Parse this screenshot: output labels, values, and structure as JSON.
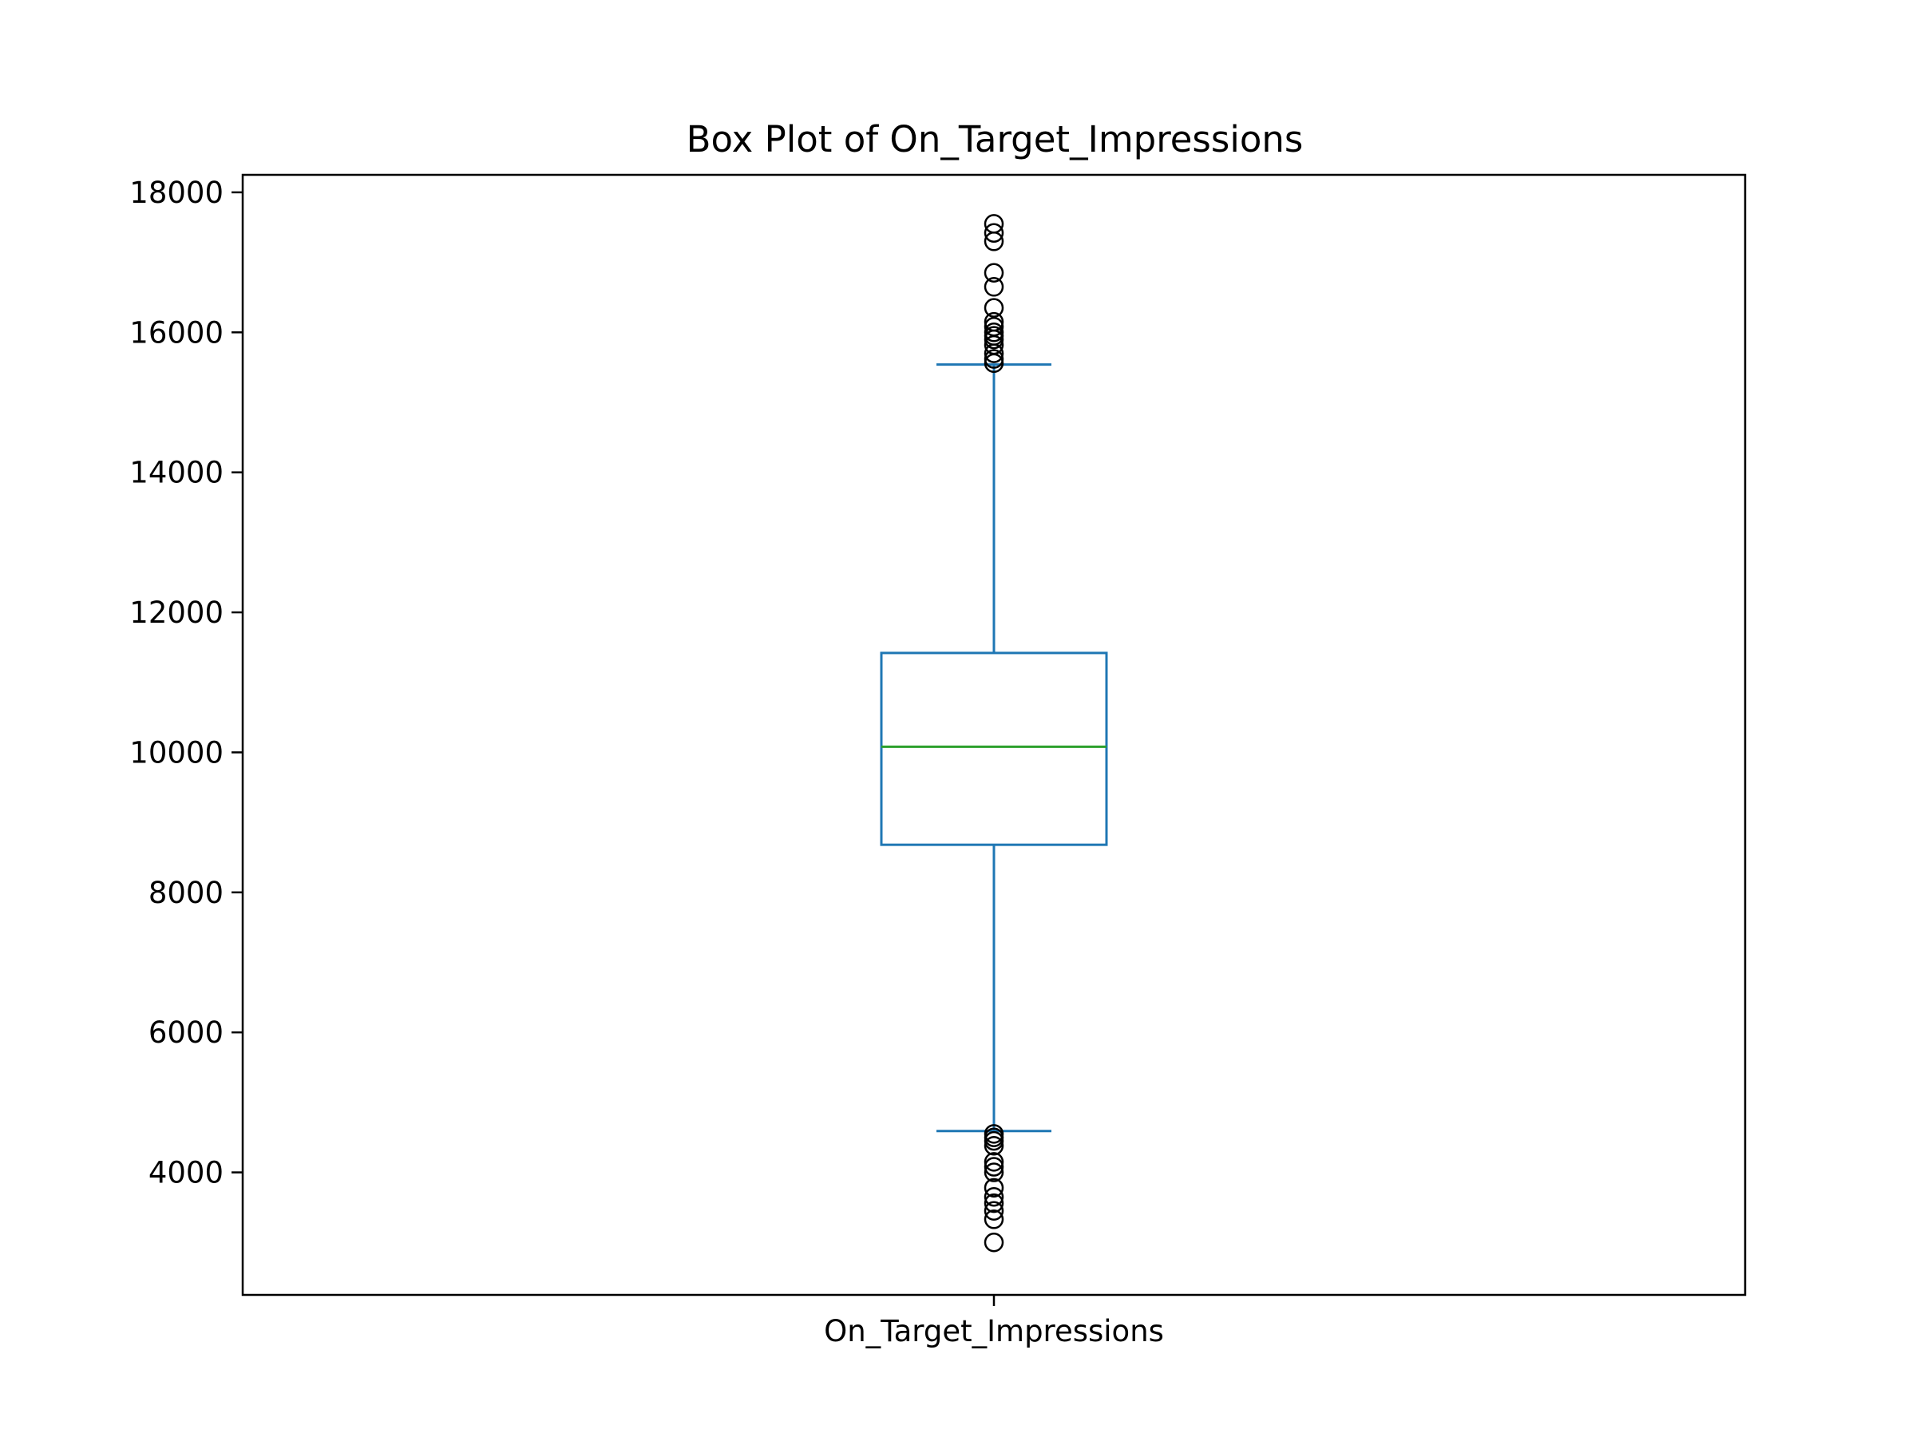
{
  "chart_data": {
    "type": "box",
    "title": "Box Plot of On_Target_Impressions",
    "xlabel": "",
    "ylabel": "",
    "categories": [
      "On_Target_Impressions"
    ],
    "ylim": [
      2250,
      18250
    ],
    "yticks": [
      4000,
      6000,
      8000,
      10000,
      12000,
      14000,
      16000,
      18000
    ],
    "grid": false,
    "box": {
      "whisker_low": 4590,
      "q1": 8680,
      "median": 10080,
      "q3": 11420,
      "whisker_high": 15540
    },
    "outliers": [
      17550,
      17420,
      17300,
      16850,
      16650,
      16350,
      16150,
      16080,
      16000,
      15950,
      15900,
      15820,
      15700,
      15620,
      15560,
      4550,
      4500,
      4450,
      4380,
      4150,
      4080,
      4000,
      3780,
      3650,
      3560,
      3450,
      3330,
      3000
    ],
    "colors": {
      "box": "#1f77b4",
      "median": "#2ca02c",
      "outlier": "#000000",
      "axes": "#000000"
    }
  }
}
